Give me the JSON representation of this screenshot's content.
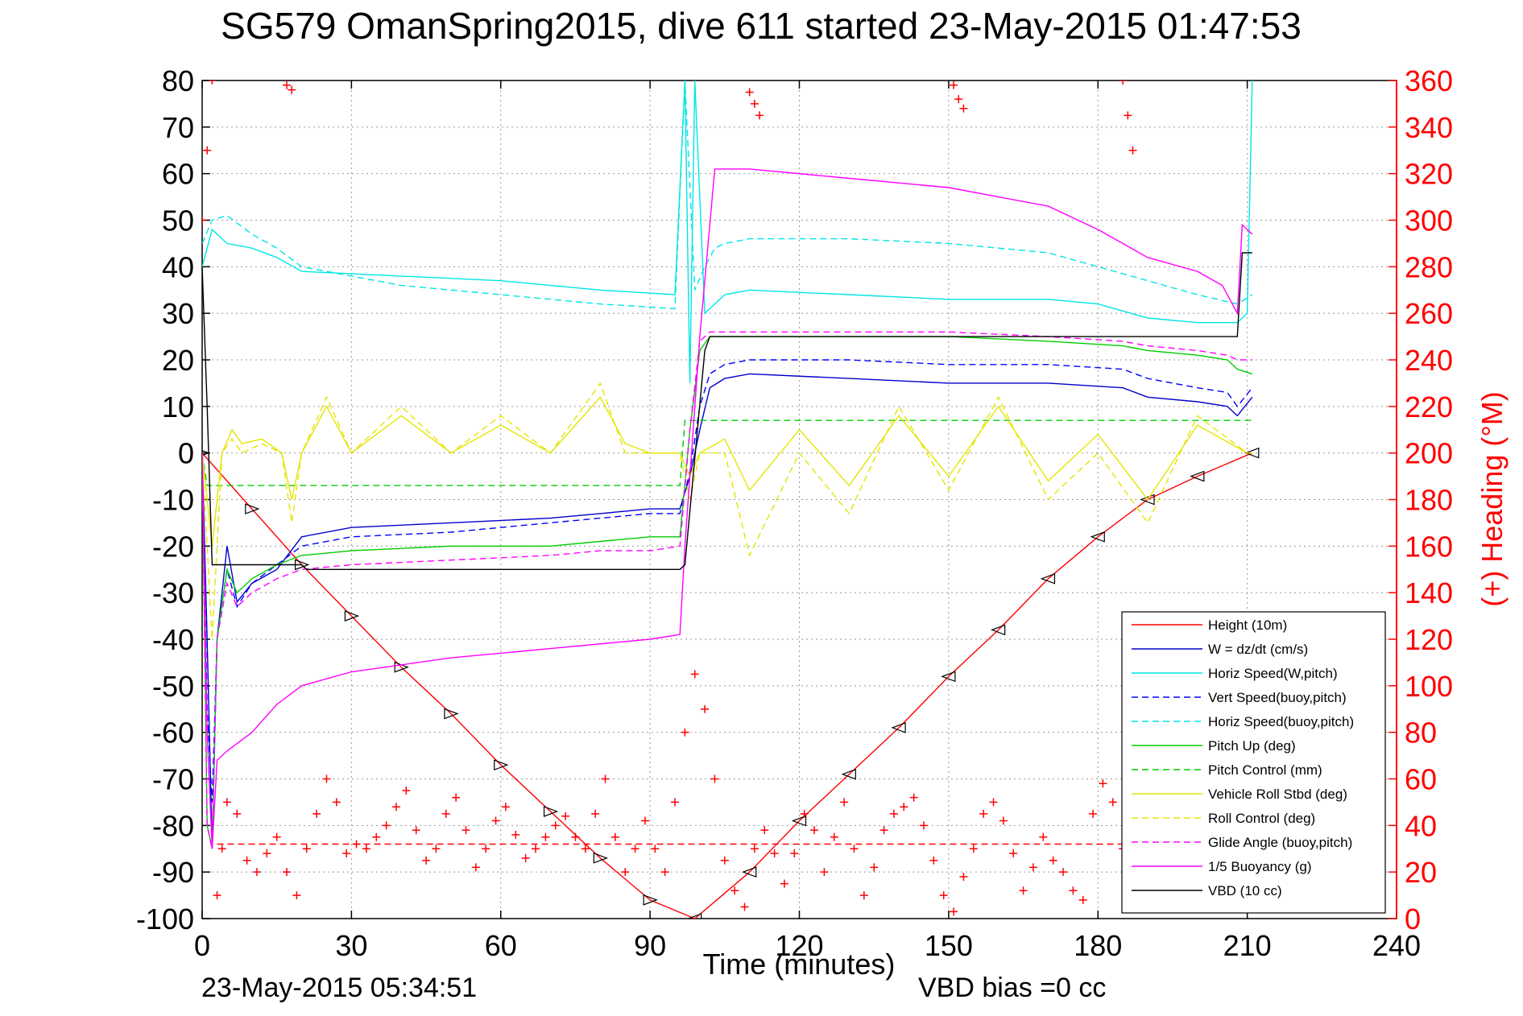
{
  "chart_data": {
    "type": "line",
    "title": "SG579 OmanSpring2015, dive 611 started 23-May-2015 01:47:53",
    "xlabel": "Time (minutes)",
    "ylabel_right": "(+) Heading (°M)",
    "footer_timestamp": "23-May-2015 05:34:51",
    "footer_note": "VBD bias =0 cc",
    "xlim": [
      0,
      240
    ],
    "ylim_left": [
      -100,
      80
    ],
    "ylim_right": [
      0,
      360
    ],
    "grid": true,
    "legend_position": "bottom-right",
    "x_ticks": [
      "0",
      "30",
      "60",
      "90",
      "120",
      "150",
      "180",
      "210",
      "240"
    ],
    "y_ticks_left": [
      "80",
      "70",
      "60",
      "50",
      "40",
      "30",
      "20",
      "10",
      "0",
      "-10",
      "-20",
      "-30",
      "-40",
      "-50",
      "-60",
      "-70",
      "-80",
      "-90",
      "-100"
    ],
    "y_ticks_right": [
      "360",
      "340",
      "320",
      "300",
      "280",
      "260",
      "240",
      "220",
      "200",
      "180",
      "160",
      "140",
      "120",
      "100",
      "80",
      "60",
      "40",
      "20",
      "0"
    ],
    "series": [
      {
        "name": "Height (10m)",
        "color": "#ff0000",
        "style": "solid",
        "x": [
          0,
          10,
          20,
          30,
          40,
          50,
          60,
          70,
          80,
          90,
          99,
          110,
          120,
          130,
          140,
          150,
          160,
          170,
          180,
          190,
          200,
          211
        ],
        "y": [
          0,
          -12,
          -24,
          -35,
          -46,
          -56,
          -67,
          -77,
          -87,
          -96,
          -100,
          -90,
          -79,
          -69,
          -59,
          -48,
          -38,
          -27,
          -18,
          -10,
          -5,
          0
        ],
        "markers": true
      },
      {
        "name": "W = dz/dt (cm/s)",
        "color": "#0000cc",
        "style": "solid",
        "x": [
          0,
          1,
          2,
          3,
          5,
          7,
          10,
          15,
          20,
          30,
          50,
          70,
          80,
          90,
          96,
          98,
          100,
          102,
          105,
          110,
          130,
          150,
          170,
          185,
          190,
          200,
          206,
          208,
          211
        ],
        "y": [
          0,
          -40,
          -85,
          -40,
          -20,
          -32,
          -28,
          -25,
          -18,
          -16,
          -15,
          -14,
          -13,
          -12,
          -12,
          -5,
          5,
          14,
          16,
          17,
          16,
          15,
          15,
          14,
          12,
          11,
          10,
          8,
          12
        ]
      },
      {
        "name": "Horiz Speed(W,pitch)",
        "color": "#00e5e5",
        "style": "solid",
        "x": [
          0,
          2,
          5,
          10,
          15,
          20,
          40,
          60,
          80,
          95,
          97,
          98,
          99,
          101,
          103,
          105,
          110,
          130,
          150,
          170,
          180,
          190,
          200,
          208,
          210,
          211
        ],
        "y": [
          40,
          48,
          45,
          44,
          42,
          39,
          38,
          37,
          35,
          34,
          80,
          15,
          80,
          30,
          32,
          34,
          35,
          34,
          33,
          33,
          32,
          29,
          28,
          28,
          30,
          80
        ]
      },
      {
        "name": "Vert Speed(buoy,pitch)",
        "color": "#0000ff",
        "style": "dashed",
        "x": [
          0,
          1,
          2,
          3,
          5,
          7,
          10,
          15,
          20,
          30,
          50,
          70,
          80,
          90,
          96,
          98,
          100,
          102,
          105,
          110,
          130,
          150,
          170,
          185,
          190,
          200,
          206,
          208,
          211
        ],
        "y": [
          0,
          -55,
          -75,
          -40,
          -25,
          -33,
          -28,
          -24,
          -20,
          -18,
          -17,
          -15,
          -14,
          -13,
          -13,
          -4,
          10,
          17,
          19,
          20,
          20,
          19,
          19,
          18,
          16,
          14,
          13,
          10,
          14
        ]
      },
      {
        "name": "Horiz Speed(buoy,pitch)",
        "color": "#00e5e5",
        "style": "dashed",
        "x": [
          0,
          2,
          5,
          10,
          15,
          20,
          40,
          60,
          80,
          95,
          97,
          99,
          101,
          103,
          105,
          110,
          130,
          150,
          170,
          180,
          190,
          200,
          208,
          211
        ],
        "y": [
          45,
          50,
          51,
          47,
          44,
          40,
          36,
          34,
          32,
          31,
          80,
          35,
          40,
          44,
          45,
          46,
          46,
          45,
          43,
          40,
          37,
          34,
          32,
          34
        ]
      },
      {
        "name": "Pitch Up (deg)",
        "color": "#00cc00",
        "style": "solid",
        "x": [
          0,
          1,
          2,
          3,
          5,
          7,
          10,
          15,
          20,
          30,
          50,
          70,
          80,
          90,
          96,
          98,
          100,
          102,
          105,
          110,
          130,
          150,
          170,
          185,
          190,
          200,
          206,
          208,
          211
        ],
        "y": [
          0,
          -80,
          -85,
          -40,
          -25,
          -30,
          -27,
          -24,
          -22,
          -21,
          -20,
          -20,
          -19,
          -18,
          -18,
          5,
          22,
          25,
          25,
          25,
          25,
          25,
          24,
          23,
          22,
          21,
          20,
          18,
          17
        ]
      },
      {
        "name": "Pitch Control (mm)",
        "color": "#00cc00",
        "style": "dashed",
        "x": [
          0,
          1,
          2,
          3,
          4,
          96,
          97,
          98,
          210,
          211
        ],
        "y": [
          0,
          -7,
          -7,
          -7,
          -7,
          -7,
          7,
          7,
          7,
          7
        ]
      },
      {
        "name": "Vehicle Roll Stbd (deg)",
        "color": "#e5e500",
        "style": "solid",
        "x": [
          0,
          2,
          4,
          6,
          8,
          12,
          16,
          18,
          20,
          25,
          30,
          40,
          50,
          60,
          70,
          80,
          85,
          90,
          96,
          98,
          100,
          105,
          110,
          120,
          130,
          140,
          150,
          160,
          170,
          180,
          190,
          200,
          210,
          211
        ],
        "y": [
          0,
          -20,
          0,
          5,
          2,
          3,
          0,
          -10,
          0,
          10,
          0,
          8,
          0,
          6,
          0,
          12,
          2,
          0,
          0,
          -5,
          0,
          3,
          -8,
          5,
          -7,
          8,
          -5,
          10,
          -6,
          4,
          -10,
          6,
          0,
          0
        ]
      },
      {
        "name": "Roll Control (deg)",
        "color": "#e5e500",
        "style": "dashed",
        "x": [
          0,
          2,
          4,
          6,
          8,
          12,
          16,
          18,
          20,
          25,
          30,
          40,
          50,
          60,
          70,
          80,
          85,
          90,
          96,
          98,
          100,
          105,
          110,
          120,
          130,
          140,
          150,
          160,
          170,
          180,
          190,
          200,
          210,
          211
        ],
        "y": [
          0,
          -40,
          0,
          3,
          0,
          2,
          0,
          -15,
          0,
          12,
          0,
          10,
          0,
          8,
          0,
          15,
          0,
          0,
          0,
          -10,
          0,
          0,
          -22,
          0,
          -13,
          10,
          -8,
          12,
          -10,
          0,
          -15,
          8,
          0,
          0
        ]
      },
      {
        "name": "Glide Angle (buoy,pitch)",
        "color": "#ff00ff",
        "style": "dashed",
        "x": [
          0,
          1,
          2,
          3,
          5,
          7,
          10,
          15,
          20,
          30,
          50,
          70,
          80,
          90,
          96,
          98,
          100,
          102,
          105,
          110,
          130,
          150,
          170,
          185,
          190,
          200,
          206,
          208,
          211
        ],
        "y": [
          0,
          -80,
          -85,
          -40,
          -28,
          -33,
          -30,
          -27,
          -25,
          -24,
          -23,
          -22,
          -21,
          -21,
          -20,
          5,
          24,
          26,
          26,
          26,
          26,
          26,
          25,
          24,
          23,
          22,
          21,
          20,
          20
        ]
      },
      {
        "name": "1/5 Buoyancy (g)",
        "color": "#ff00ff",
        "style": "solid",
        "x": [
          0,
          1,
          2,
          3,
          5,
          10,
          15,
          20,
          30,
          50,
          70,
          90,
          96,
          97,
          100,
          103,
          110,
          130,
          150,
          170,
          180,
          190,
          200,
          205,
          208,
          209,
          211
        ],
        "y": [
          0,
          -60,
          -85,
          -66,
          -64,
          -60,
          -54,
          -50,
          -47,
          -44,
          -42,
          -40,
          -39,
          -20,
          25,
          61,
          61,
          59,
          57,
          53,
          48,
          42,
          39,
          36,
          30,
          49,
          47
        ]
      },
      {
        "name": "VBD (10 cc)",
        "color": "#000000",
        "style": "solid",
        "x": [
          0,
          1,
          2,
          3,
          20,
          21,
          40,
          96,
          97,
          101,
          102,
          208,
          209,
          211
        ],
        "y": [
          40,
          10,
          -24,
          -24,
          -24,
          -25,
          -25,
          -25,
          -24,
          22,
          25,
          25,
          43,
          43
        ]
      },
      {
        "name": "",
        "color": "#ff0000",
        "style": "dashed",
        "axis": "right",
        "x": [
          3,
          211
        ],
        "y": [
          32,
          32
        ]
      },
      {
        "name": "",
        "color": "#ff0000",
        "style": "plus-markers",
        "axis": "right",
        "x": [
          0,
          1,
          2,
          3,
          4,
          5,
          7,
          9,
          11,
          13,
          15,
          17,
          19,
          21,
          23,
          25,
          27,
          29,
          31,
          33,
          35,
          37,
          39,
          41,
          43,
          45,
          47,
          49,
          51,
          53,
          55,
          57,
          59,
          61,
          63,
          65,
          67,
          69,
          71,
          73,
          75,
          77,
          79,
          81,
          83,
          85,
          87,
          89,
          91,
          93,
          95,
          97,
          99,
          101,
          103,
          105,
          107,
          109,
          111,
          113,
          115,
          117,
          119,
          121,
          123,
          125,
          127,
          129,
          131,
          133,
          135,
          137,
          139,
          141,
          143,
          145,
          147,
          149,
          151,
          153,
          155,
          157,
          159,
          161,
          163,
          165,
          167,
          169,
          171,
          173,
          175,
          177,
          179,
          181,
          183,
          185,
          187,
          189,
          191,
          193,
          195,
          197,
          199,
          201,
          203,
          205,
          207,
          209,
          211
        ],
        "y": [
          300,
          330,
          360,
          10,
          30,
          50,
          45,
          25,
          20,
          28,
          35,
          20,
          10,
          30,
          45,
          60,
          50,
          28,
          32,
          30,
          35,
          40,
          48,
          55,
          38,
          25,
          30,
          45,
          52,
          38,
          22,
          30,
          42,
          48,
          36,
          26,
          30,
          35,
          40,
          44,
          35,
          30,
          45,
          60,
          35,
          20,
          30,
          42,
          30,
          20,
          50,
          80,
          105,
          90,
          60,
          25,
          12,
          5,
          30,
          38,
          28,
          15,
          28,
          45,
          38,
          20,
          35,
          50,
          30,
          10,
          22,
          38,
          45,
          48,
          52,
          40,
          25,
          10,
          3,
          18,
          30,
          45,
          50,
          42,
          28,
          12,
          22,
          35,
          25,
          20,
          12,
          8,
          45,
          58,
          50,
          30,
          10,
          5,
          18,
          30,
          25,
          20,
          10,
          22,
          35,
          40,
          45,
          48,
          50
        ]
      },
      {
        "name": "",
        "color": "#ff0000",
        "style": "plus-markers",
        "axis": "right",
        "x": [
          17,
          18,
          110,
          111,
          112,
          151,
          152,
          153,
          185,
          186,
          187
        ],
        "y": [
          358,
          356,
          355,
          350,
          345,
          358,
          352,
          348,
          360,
          345,
          330
        ]
      }
    ]
  }
}
